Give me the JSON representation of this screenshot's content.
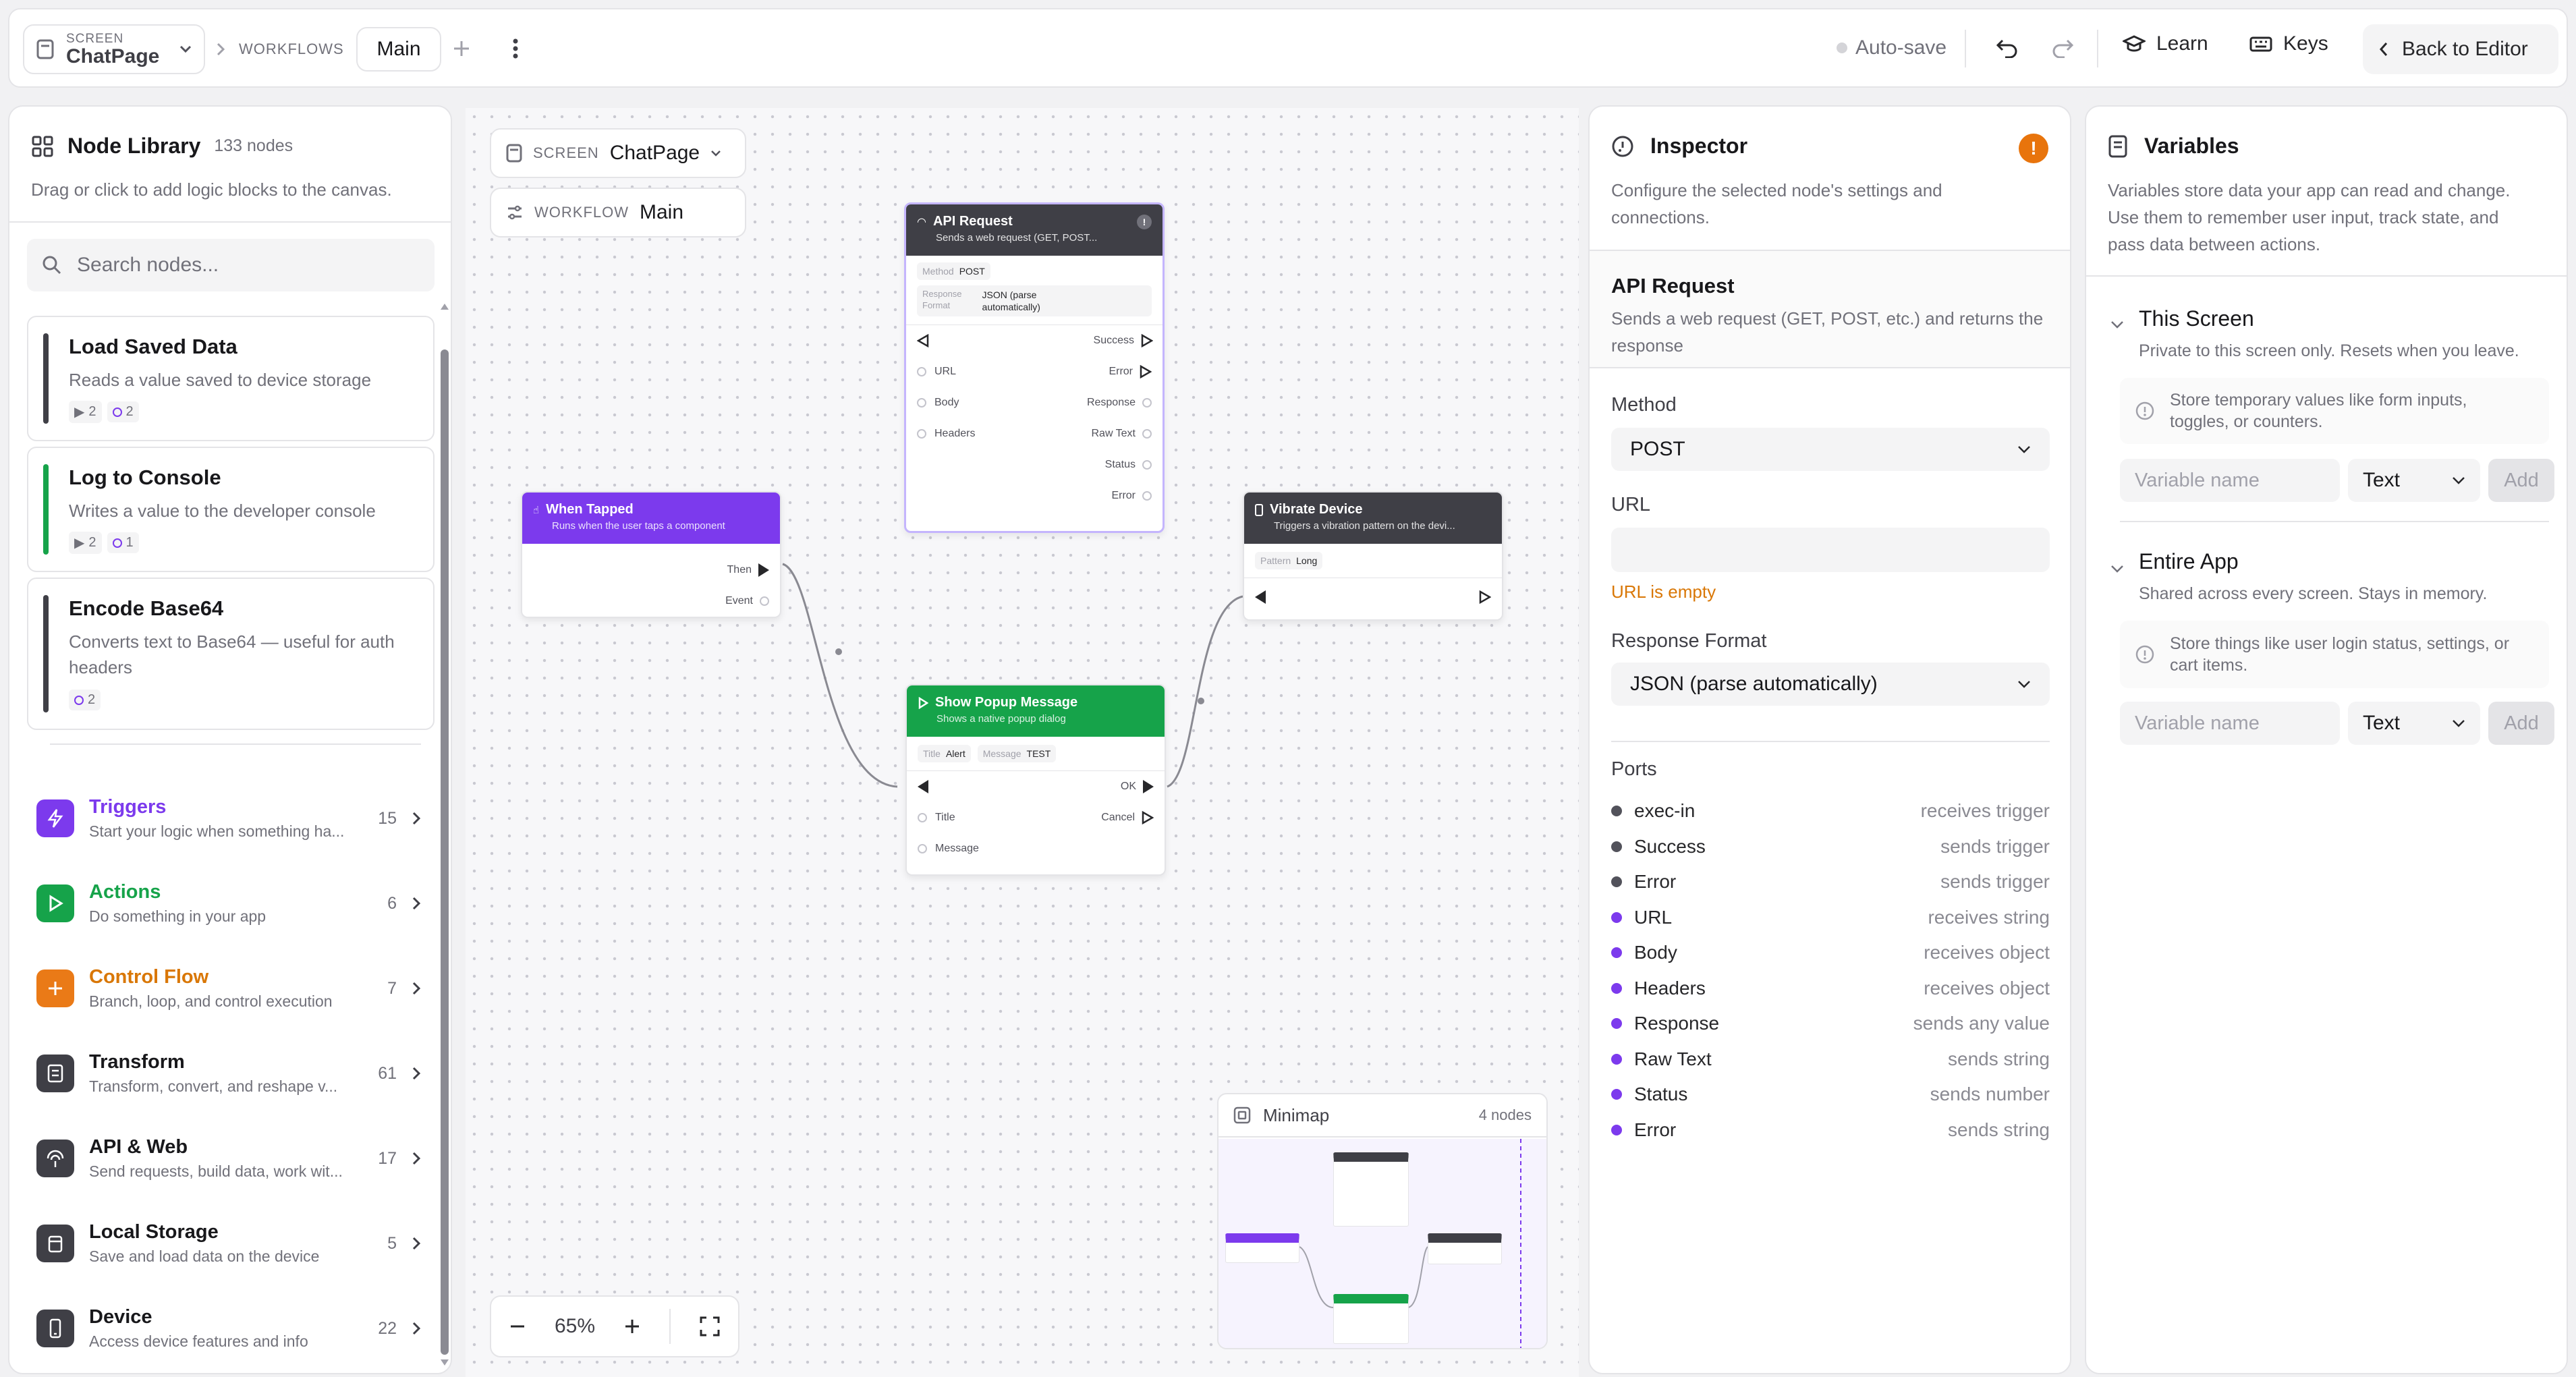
{
  "topbar": {
    "screen_label": "SCREEN",
    "screen_name": "ChatPage",
    "workflows_label": "WORKFLOWS",
    "active_tab": "Main",
    "autosave": "Auto-save",
    "learn": "Learn",
    "keys": "Keys",
    "back": "Back to Editor"
  },
  "library": {
    "title": "Node Library",
    "count": "133 nodes",
    "desc": "Drag or click to add logic blocks to the canvas.",
    "search_placeholder": "Search nodes...",
    "cards": [
      {
        "title": "Load Saved Data",
        "desc": "Reads a value saved to device storage",
        "desc2": "",
        "badge_in": "2",
        "badge_out": "2",
        "color": "#3f3f46"
      },
      {
        "title": "Log to Console",
        "desc": "Writes a value to the developer console",
        "desc2": "",
        "badge_in": "2",
        "badge_out": "1",
        "color": "#16a34a"
      },
      {
        "title": "Encode Base64",
        "desc": "Converts text to Base64 — useful for auth",
        "desc2": "headers",
        "badge_in": "",
        "badge_out": "2",
        "color": "#3f3f46"
      }
    ],
    "categories": [
      {
        "name": "Triggers",
        "desc": "Start your logic when something ha...",
        "count": "15",
        "color": "#7c3aed",
        "name_color": "#7c3aed"
      },
      {
        "name": "Actions",
        "desc": "Do something in your app",
        "count": "6",
        "color": "#16a34a",
        "name_color": "#16a34a"
      },
      {
        "name": "Control Flow",
        "desc": "Branch, loop, and control execution",
        "count": "7",
        "color": "#ea7a17",
        "name_color": "#d97706"
      },
      {
        "name": "Transform",
        "desc": "Transform, convert, and reshape v...",
        "count": "61",
        "color": "#3f3f46",
        "name_color": "#18181b"
      },
      {
        "name": "API & Web",
        "desc": "Send requests, build data, work wit...",
        "count": "17",
        "color": "#3f3f46",
        "name_color": "#18181b"
      },
      {
        "name": "Local Storage",
        "desc": "Save and load data on the device",
        "count": "5",
        "color": "#3f3f46",
        "name_color": "#18181b"
      },
      {
        "name": "Device",
        "desc": "Access device features and info",
        "count": "22",
        "color": "#3f3f46",
        "name_color": "#18181b"
      }
    ]
  },
  "canvas": {
    "screen_label": "SCREEN",
    "screen_name": "ChatPage",
    "workflow_label": "WORKFLOW",
    "workflow_name": "Main",
    "zoom": "65%",
    "nodes": {
      "api": {
        "title": "API Request",
        "sub": "Sends a web request (GET, POST...",
        "method_k": "Method",
        "method_v": "POST",
        "rf_k1": "Response",
        "rf_k2": "Format",
        "rf_v1": "JSON (parse",
        "rf_v2": "automatically)",
        "p_success": "Success",
        "p_url": "URL",
        "p_error": "Error",
        "p_body": "Body",
        "p_response": "Response",
        "p_headers": "Headers",
        "p_raw": "Raw Text",
        "p_status": "Status",
        "p_error2": "Error"
      },
      "tap": {
        "title": "When Tapped",
        "sub": "Runs when the user taps a component",
        "p_then": "Then",
        "p_event": "Event"
      },
      "vibrate": {
        "title": "Vibrate Device",
        "sub": "Triggers a vibration pattern on the devi...",
        "pattern_k": "Pattern",
        "pattern_v": "Long"
      },
      "popup": {
        "title": "Show Popup Message",
        "sub": "Shows a native popup dialog",
        "title_k": "Title",
        "title_v": "Alert",
        "msg_k": "Message",
        "msg_v": "TEST",
        "p_ok": "OK",
        "p_title": "Title",
        "p_cancel": "Cancel",
        "p_message": "Message"
      }
    },
    "minimap": {
      "title": "Minimap",
      "count": "4 nodes"
    }
  },
  "inspector": {
    "title": "Inspector",
    "desc1": "Configure the selected node's settings and",
    "desc2": "connections.",
    "node_title": "API Request",
    "node_desc1": "Sends a web request (GET, POST, etc.) and returns the",
    "node_desc2": "response",
    "method_label": "Method",
    "method_value": "POST",
    "url_label": "URL",
    "url_value": "",
    "url_error": "URL is empty",
    "rf_label": "Response Format",
    "rf_value": "JSON (parse automatically)",
    "ports_label": "Ports",
    "ports": [
      {
        "name": "exec-in",
        "desc": "receives trigger",
        "color": "#52525b"
      },
      {
        "name": "Success",
        "desc": "sends trigger",
        "color": "#52525b"
      },
      {
        "name": "Error",
        "desc": "sends trigger",
        "color": "#52525b"
      },
      {
        "name": "URL",
        "desc": "receives string",
        "color": "#7c3aed"
      },
      {
        "name": "Body",
        "desc": "receives object",
        "color": "#7c3aed"
      },
      {
        "name": "Headers",
        "desc": "receives object",
        "color": "#7c3aed"
      },
      {
        "name": "Response",
        "desc": "sends any value",
        "color": "#7c3aed"
      },
      {
        "name": "Raw Text",
        "desc": "sends string",
        "color": "#7c3aed"
      },
      {
        "name": "Status",
        "desc": "sends number",
        "color": "#7c3aed"
      },
      {
        "name": "Error",
        "desc": "sends string",
        "color": "#7c3aed"
      }
    ],
    "warning_color": "#e8740c"
  },
  "variables": {
    "title": "Variables",
    "desc1": "Variables store data your app can read and change.",
    "desc2": "Use them to remember user input, track state, and",
    "desc3": "pass data between actions.",
    "screen_title": "This Screen",
    "screen_desc": "Private to this screen only. Resets when you leave.",
    "screen_hint1": "Store temporary values like form inputs,",
    "screen_hint2": "toggles, or counters.",
    "app_title": "Entire App",
    "app_desc": "Shared across every screen. Stays in memory.",
    "app_hint1": "Store things like user login status, settings, or",
    "app_hint2": "cart items.",
    "name_placeholder": "Variable name",
    "type_value": "Text",
    "add_label": "Add"
  }
}
